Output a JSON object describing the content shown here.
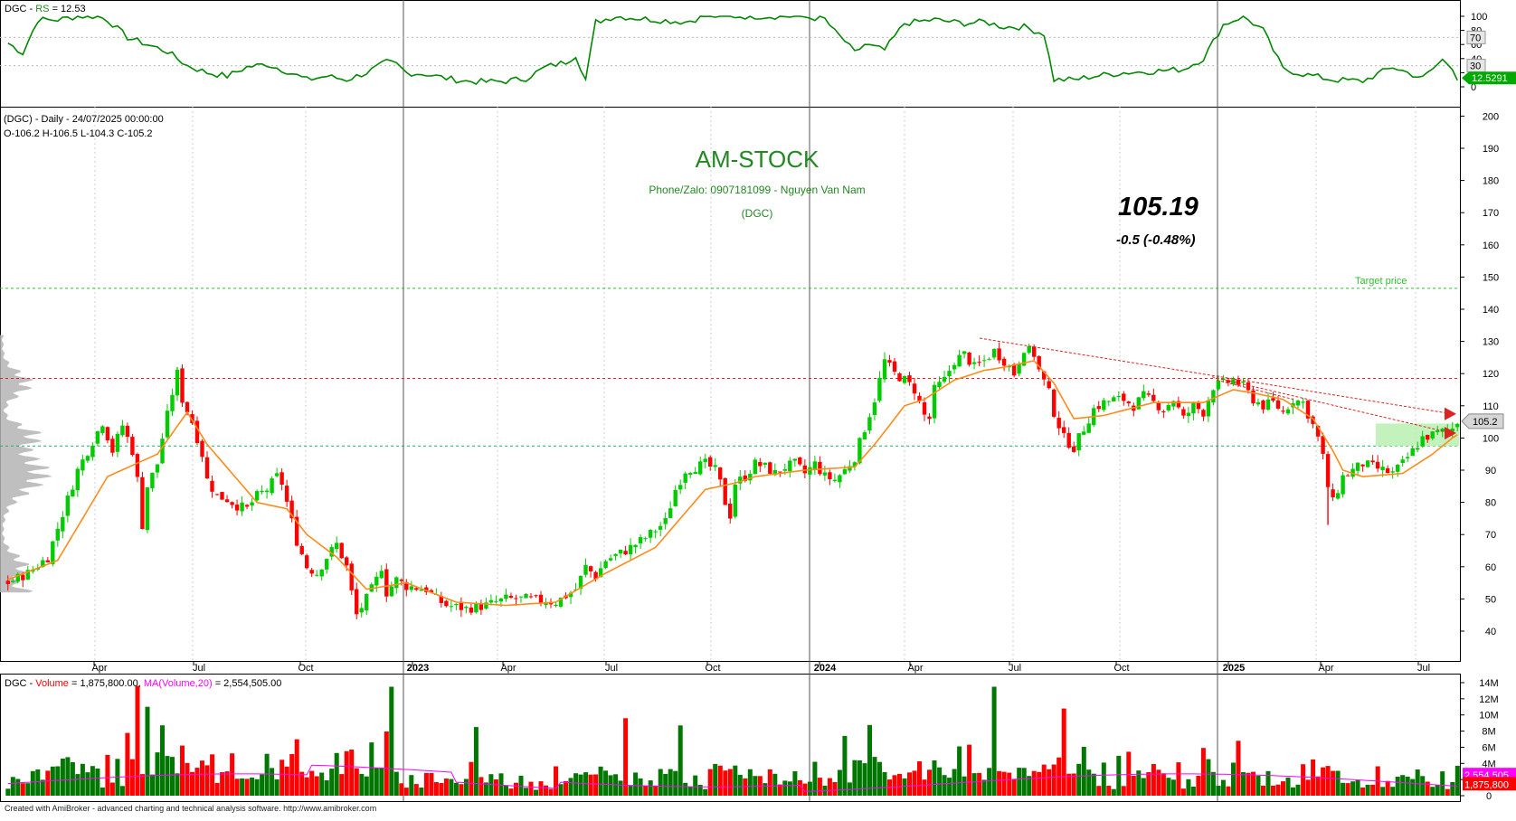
{
  "colors": {
    "up": "#00cc00",
    "down": "#ff0000",
    "up_dark": "#007700",
    "ma": "#ff8c1a",
    "rs": "#008800",
    "vol_ma": "#ff00ff",
    "profile": "#b4b4b4",
    "cyan_level": "#22aa66",
    "target": "#33bb33",
    "title_green": "#228822",
    "red_level": "#dd2222",
    "accent_green": "#00aa00"
  },
  "rs_panel": {
    "symbol": "DGC",
    "name": "RS",
    "value_text": "= 12.53",
    "ticks": [
      "100",
      "80",
      "60",
      "40",
      "20",
      "0"
    ],
    "level_70": "70",
    "level_30": "30",
    "last_label": "12.5291"
  },
  "price_panel": {
    "header": "(DGC) - Daily  - 24/07/2025 00:00:00",
    "ohlc": "O-106.2  H-106.5  L-104.3  C-105.2",
    "title": "AM-STOCK",
    "phone": "Phone/Zalo: 0907181099 - Nguyen Van Nam",
    "symbol_tag": "(DGC)",
    "big_price": "105.19",
    "change": "-0.5 (-0.48%)",
    "target_label": "Target price",
    "last_label": "105.2",
    "y_ticks": [
      "200",
      "190",
      "180",
      "170",
      "160",
      "150",
      "140",
      "130",
      "120",
      "110",
      "100",
      "90",
      "80",
      "70",
      "60",
      "50",
      "40"
    ],
    "target_level": 146.5,
    "red_level": 118.5,
    "green_level": 97.5
  },
  "x_axis": {
    "labels": [
      "Apr",
      "Jul",
      "Oct",
      "2023",
      "Apr",
      "Jul",
      "Oct",
      "2024",
      "Apr",
      "Jul",
      "Oct",
      "2025",
      "Apr",
      "Jul"
    ],
    "bold": [
      "2023",
      "2024",
      "2025"
    ]
  },
  "volume_panel": {
    "symbol": "DGC",
    "name": "Volume",
    "value": "= 1,875,800.00,",
    "ma_name": "MA(Volume,20)",
    "ma_value": "= 2,554,505.00",
    "y_ticks": [
      "14M",
      "12M",
      "10M",
      "8M",
      "6M",
      "4M",
      "2M",
      "0"
    ],
    "ma_label": "2,554,505",
    "vol_label": "1,875,800"
  },
  "footer": "Created with AmiBroker - advanced charting and technical analysis software. http://www.amibroker.com",
  "chart_data": {
    "type": "candlestick",
    "symbol": "DGC",
    "interval": "Daily",
    "price_ylim": [
      35,
      215
    ],
    "price_path": [
      [
        0,
        55
      ],
      [
        4,
        58
      ],
      [
        8,
        63
      ],
      [
        10,
        72
      ],
      [
        14,
        90
      ],
      [
        17,
        99
      ],
      [
        19,
        105
      ],
      [
        21,
        96
      ],
      [
        23,
        104
      ],
      [
        25,
        96
      ],
      [
        26,
        87
      ],
      [
        27,
        73
      ],
      [
        28,
        85
      ],
      [
        30,
        92
      ],
      [
        31,
        100
      ],
      [
        33,
        114
      ],
      [
        34,
        120
      ],
      [
        35,
        112
      ],
      [
        37,
        105
      ],
      [
        38,
        100
      ],
      [
        39,
        95
      ],
      [
        40,
        87
      ],
      [
        42,
        82
      ],
      [
        44,
        81
      ],
      [
        46,
        79
      ],
      [
        48,
        78
      ],
      [
        50,
        82
      ],
      [
        52,
        84
      ],
      [
        54,
        88
      ],
      [
        55,
        86
      ],
      [
        56,
        80
      ],
      [
        58,
        68
      ],
      [
        60,
        60
      ],
      [
        62,
        58
      ],
      [
        64,
        63
      ],
      [
        66,
        67
      ],
      [
        68,
        60
      ],
      [
        69,
        52
      ],
      [
        70,
        45
      ],
      [
        72,
        50
      ],
      [
        74,
        56
      ],
      [
        75,
        60
      ],
      [
        76,
        52
      ],
      [
        78,
        56
      ],
      [
        80,
        54
      ],
      [
        84,
        53
      ],
      [
        86,
        50
      ],
      [
        88,
        48
      ],
      [
        92,
        47
      ],
      [
        96,
        48
      ],
      [
        100,
        50
      ],
      [
        104,
        50
      ],
      [
        110,
        49
      ],
      [
        114,
        53
      ],
      [
        116,
        60
      ],
      [
        118,
        57
      ],
      [
        120,
        62
      ],
      [
        124,
        65
      ],
      [
        128,
        69
      ],
      [
        132,
        74
      ],
      [
        134,
        84
      ],
      [
        136,
        90
      ],
      [
        138,
        91
      ],
      [
        140,
        92
      ],
      [
        142,
        90
      ],
      [
        143,
        86
      ],
      [
        144,
        80
      ],
      [
        145,
        76
      ],
      [
        146,
        86
      ],
      [
        148,
        88
      ],
      [
        150,
        92
      ],
      [
        152,
        91
      ],
      [
        154,
        89
      ],
      [
        156,
        91
      ],
      [
        158,
        92
      ],
      [
        160,
        89
      ],
      [
        162,
        92
      ],
      [
        164,
        88
      ],
      [
        166,
        87
      ],
      [
        168,
        90
      ],
      [
        170,
        94
      ],
      [
        172,
        103
      ],
      [
        174,
        112
      ],
      [
        176,
        124
      ],
      [
        178,
        120
      ],
      [
        180,
        118
      ],
      [
        182,
        115
      ],
      [
        184,
        107
      ],
      [
        185,
        106
      ],
      [
        186,
        115
      ],
      [
        188,
        118
      ],
      [
        190,
        124
      ],
      [
        192,
        126
      ],
      [
        194,
        122
      ],
      [
        196,
        124
      ],
      [
        198,
        127
      ],
      [
        200,
        124
      ],
      [
        202,
        120
      ],
      [
        204,
        128
      ],
      [
        206,
        126
      ],
      [
        207,
        121
      ],
      [
        209,
        114
      ],
      [
        210,
        108
      ],
      [
        212,
        100
      ],
      [
        214,
        97
      ],
      [
        216,
        103
      ],
      [
        218,
        109
      ],
      [
        220,
        111
      ],
      [
        222,
        112
      ],
      [
        224,
        112
      ],
      [
        226,
        110
      ],
      [
        228,
        113
      ],
      [
        230,
        111
      ],
      [
        232,
        109
      ],
      [
        234,
        112
      ],
      [
        236,
        106
      ],
      [
        238,
        110
      ],
      [
        240,
        108
      ],
      [
        242,
        116
      ],
      [
        244,
        117
      ],
      [
        246,
        118
      ],
      [
        248,
        116
      ],
      [
        250,
        112
      ],
      [
        252,
        110
      ],
      [
        254,
        111
      ],
      [
        256,
        108
      ],
      [
        258,
        112
      ],
      [
        260,
        111
      ],
      [
        262,
        104
      ],
      [
        263,
        100
      ],
      [
        264,
        94
      ],
      [
        265,
        85
      ],
      [
        266,
        80
      ],
      [
        267,
        84
      ],
      [
        268,
        88
      ],
      [
        270,
        90
      ],
      [
        272,
        92
      ],
      [
        274,
        91
      ],
      [
        276,
        90
      ],
      [
        278,
        89
      ],
      [
        280,
        92
      ],
      [
        282,
        96
      ],
      [
        284,
        100
      ],
      [
        286,
        101
      ],
      [
        288,
        102
      ],
      [
        290,
        103
      ],
      [
        291,
        105.2
      ]
    ],
    "ma_path": [
      [
        0,
        56
      ],
      [
        10,
        62
      ],
      [
        20,
        88
      ],
      [
        30,
        95
      ],
      [
        36,
        108
      ],
      [
        40,
        98
      ],
      [
        50,
        80
      ],
      [
        56,
        78
      ],
      [
        60,
        70
      ],
      [
        66,
        63
      ],
      [
        72,
        53
      ],
      [
        80,
        55
      ],
      [
        90,
        49
      ],
      [
        100,
        48
      ],
      [
        110,
        49
      ],
      [
        120,
        58
      ],
      [
        130,
        66
      ],
      [
        140,
        84
      ],
      [
        146,
        86
      ],
      [
        150,
        88
      ],
      [
        160,
        90
      ],
      [
        170,
        91
      ],
      [
        174,
        98
      ],
      [
        180,
        110
      ],
      [
        184,
        112
      ],
      [
        190,
        118
      ],
      [
        196,
        121
      ],
      [
        200,
        122
      ],
      [
        206,
        124
      ],
      [
        210,
        117
      ],
      [
        214,
        106
      ],
      [
        220,
        107
      ],
      [
        230,
        111
      ],
      [
        240,
        111
      ],
      [
        246,
        115
      ],
      [
        250,
        114
      ],
      [
        256,
        112
      ],
      [
        262,
        106
      ],
      [
        266,
        96
      ],
      [
        268,
        90
      ],
      [
        272,
        88
      ],
      [
        280,
        89
      ],
      [
        286,
        95
      ],
      [
        290,
        100
      ],
      [
        291,
        101
      ]
    ],
    "volume_ylim": [
      0,
      14000000
    ],
    "volume_last": 1875800,
    "volume_ma_last": 2554505,
    "rs_last": 12.5291,
    "rs_path": [
      [
        0,
        62
      ],
      [
        3,
        48
      ],
      [
        6,
        95
      ],
      [
        10,
        95
      ],
      [
        14,
        100
      ],
      [
        18,
        100
      ],
      [
        20,
        95
      ],
      [
        24,
        70
      ],
      [
        28,
        60
      ],
      [
        32,
        50
      ],
      [
        36,
        30
      ],
      [
        40,
        20
      ],
      [
        44,
        15
      ],
      [
        48,
        28
      ],
      [
        52,
        32
      ],
      [
        56,
        22
      ],
      [
        60,
        10
      ],
      [
        64,
        15
      ],
      [
        68,
        10
      ],
      [
        72,
        20
      ],
      [
        76,
        35
      ],
      [
        78,
        32
      ],
      [
        80,
        20
      ],
      [
        84,
        18
      ],
      [
        88,
        12
      ],
      [
        92,
        8
      ],
      [
        96,
        7
      ],
      [
        100,
        8
      ],
      [
        104,
        12
      ],
      [
        108,
        28
      ],
      [
        112,
        35
      ],
      [
        114,
        45
      ],
      [
        116,
        10
      ],
      [
        118,
        92
      ],
      [
        122,
        100
      ],
      [
        130,
        95
      ],
      [
        136,
        92
      ],
      [
        140,
        100
      ],
      [
        150,
        100
      ],
      [
        158,
        100
      ],
      [
        164,
        96
      ],
      [
        166,
        78
      ],
      [
        168,
        65
      ],
      [
        170,
        48
      ],
      [
        172,
        60
      ],
      [
        176,
        52
      ],
      [
        180,
        90
      ],
      [
        186,
        95
      ],
      [
        192,
        90
      ],
      [
        196,
        92
      ],
      [
        200,
        85
      ],
      [
        204,
        85
      ],
      [
        208,
        75
      ],
      [
        210,
        10
      ],
      [
        214,
        10
      ],
      [
        218,
        15
      ],
      [
        224,
        20
      ],
      [
        230,
        22
      ],
      [
        236,
        25
      ],
      [
        240,
        40
      ],
      [
        244,
        88
      ],
      [
        248,
        100
      ],
      [
        252,
        80
      ],
      [
        256,
        25
      ],
      [
        260,
        18
      ],
      [
        266,
        10
      ],
      [
        272,
        8
      ],
      [
        278,
        28
      ],
      [
        284,
        12
      ],
      [
        288,
        38
      ],
      [
        290,
        28
      ],
      [
        291,
        12.5
      ]
    ]
  }
}
